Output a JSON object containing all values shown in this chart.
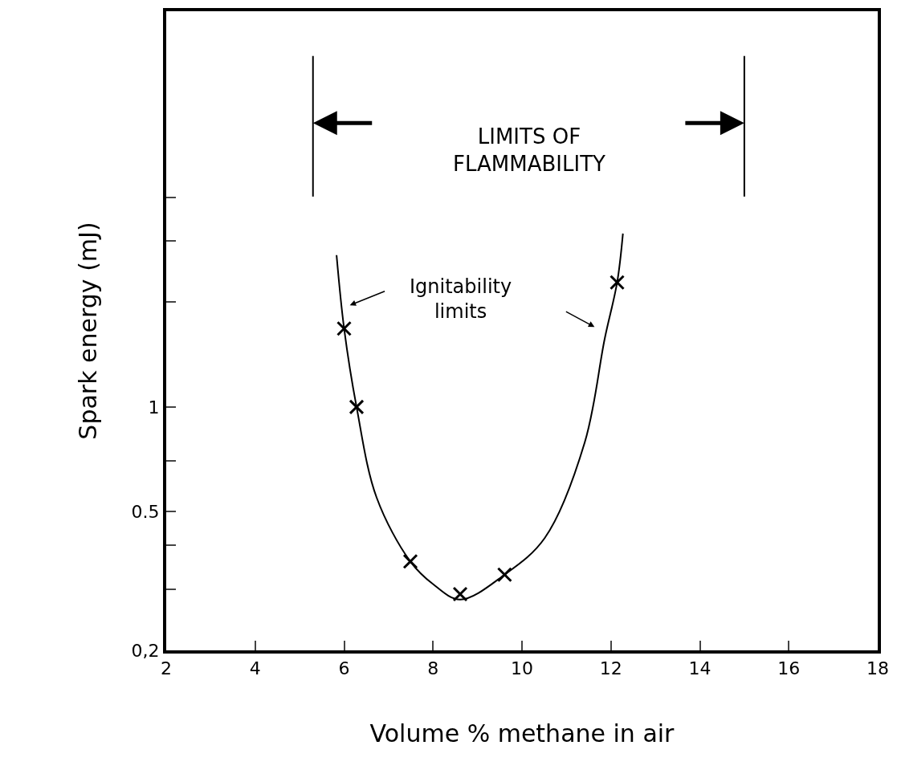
{
  "chart_data": {
    "type": "scatter",
    "xlabel": "Volume % methane in air",
    "ylabel": "Spark energy (mJ)",
    "log": "y",
    "xlim": [
      2,
      18
    ],
    "xticks": [
      2,
      4,
      6,
      8,
      10,
      12,
      14,
      16,
      18
    ],
    "ylim": [
      0.2,
      13.7
    ],
    "yticks": [
      {
        "value": 0.2,
        "label": "0,2"
      },
      {
        "value": 0.3,
        "label": null
      },
      {
        "value": 0.4,
        "label": null
      },
      {
        "value": 0.5,
        "label": "0.5"
      },
      {
        "value": 0.7,
        "label": null
      },
      1,
      {
        "value": 2,
        "label": null
      },
      {
        "value": 3,
        "label": null
      },
      {
        "value": 4,
        "label": null
      }
    ],
    "grid": false,
    "legend": false,
    "marker": "cross",
    "series": [
      {
        "type": "line",
        "color": "#000000",
        "marker": "none",
        "x": [
          5.83,
          6.0,
          6.28,
          6.73,
          7.49,
          8.0,
          8.61,
          9.61,
          10.51,
          11.41,
          11.86,
          12.14,
          12.27
        ],
        "values": [
          2.73,
          1.68,
          1.0,
          0.55,
          0.36,
          0.31,
          0.28,
          0.33,
          0.42,
          0.79,
          1.57,
          2.28,
          3.15
        ]
      },
      {
        "color": "#000000",
        "x": [
          6.0,
          6.28,
          7.49,
          8.61,
          9.61,
          12.14
        ],
        "values": [
          1.68,
          1.0,
          0.36,
          0.29,
          0.33,
          2.28
        ]
      }
    ],
    "ref_lines": [
      {
        "axis": "x",
        "value": 5.3,
        "color": "#000000"
      },
      {
        "axis": "x",
        "value": 15,
        "color": "#000000"
      }
    ],
    "annotations": [
      "LIMITS OF FLAMMABILITY",
      "Ignitability limits"
    ]
  }
}
